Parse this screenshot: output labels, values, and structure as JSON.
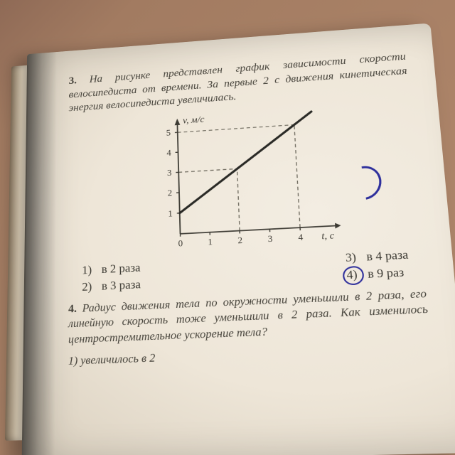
{
  "question3": {
    "number": "3.",
    "text": "На рисунке представлен график зависимости скорости велосипедиста от времени. За первые 2 с движения кинетическая энергия велосипедиста увеличилась."
  },
  "chart": {
    "type": "line",
    "ylabel": "v, м/с",
    "xlabel": "t, с",
    "xlim": [
      0,
      5
    ],
    "ylim": [
      0,
      5.5
    ],
    "xticks": [
      0,
      1,
      2,
      3,
      4
    ],
    "yticks": [
      1,
      2,
      3,
      4,
      5
    ],
    "line": {
      "points": [
        [
          0,
          1
        ],
        [
          4.6,
          5.6
        ]
      ],
      "color": "#2a2a26",
      "width": 3.2
    },
    "dashed_guides": [
      {
        "from": [
          2,
          0
        ],
        "to": [
          2,
          3
        ]
      },
      {
        "from": [
          0,
          3
        ],
        "to": [
          2,
          3
        ]
      },
      {
        "from": [
          4,
          0
        ],
        "to": [
          4,
          5
        ]
      },
      {
        "from": [
          0,
          5
        ],
        "to": [
          4,
          5
        ]
      }
    ],
    "axis_color": "#3c3a33",
    "dash_color": "#6e6a5e",
    "tick_fontsize": 13,
    "label_fontsize": 14
  },
  "answers": {
    "a1": {
      "num": "1)",
      "txt": "в 2 раза"
    },
    "a2": {
      "num": "2)",
      "txt": "в 3 раза"
    },
    "a3": {
      "num": "3)",
      "txt": "в 4 раза"
    },
    "a4": {
      "num": "4)",
      "txt": "в 9 раз"
    }
  },
  "question4": {
    "number": "4.",
    "text": "Радиус движения тела по окружности уменьшили в 2 раза, его линейную скорость тоже уменьшили в 2 раза. Как изменилось центростремительное ускорение тела?"
  },
  "q4_hint": "1) увеличилось в 2",
  "pen_color": "#2e2f9c"
}
